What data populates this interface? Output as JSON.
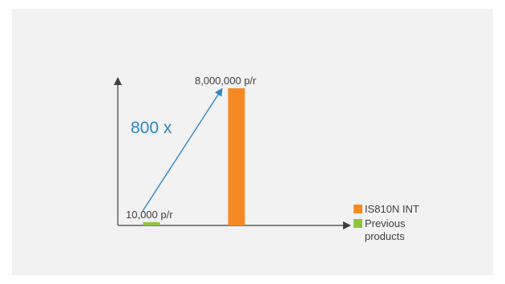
{
  "chart_data": {
    "type": "bar",
    "title": "",
    "xlabel": "",
    "ylabel": "",
    "grid": false,
    "legend_position": "right",
    "ylim": [
      0,
      8000000
    ],
    "series": [
      {
        "name": "Previous products",
        "value": 10000,
        "label": "10,000 p/r",
        "color": "#8dc63f"
      },
      {
        "name": "IS810N INT",
        "value": 8000000,
        "label": "8,000,000 p/r",
        "color": "#f58a24"
      }
    ],
    "legend": [
      {
        "name": "IS810N INT",
        "color": "#f58a24"
      },
      {
        "name": "Previous products",
        "color": "#8dc63f"
      }
    ],
    "annotation": {
      "text": "800 x",
      "color": "#2f86c8"
    }
  }
}
